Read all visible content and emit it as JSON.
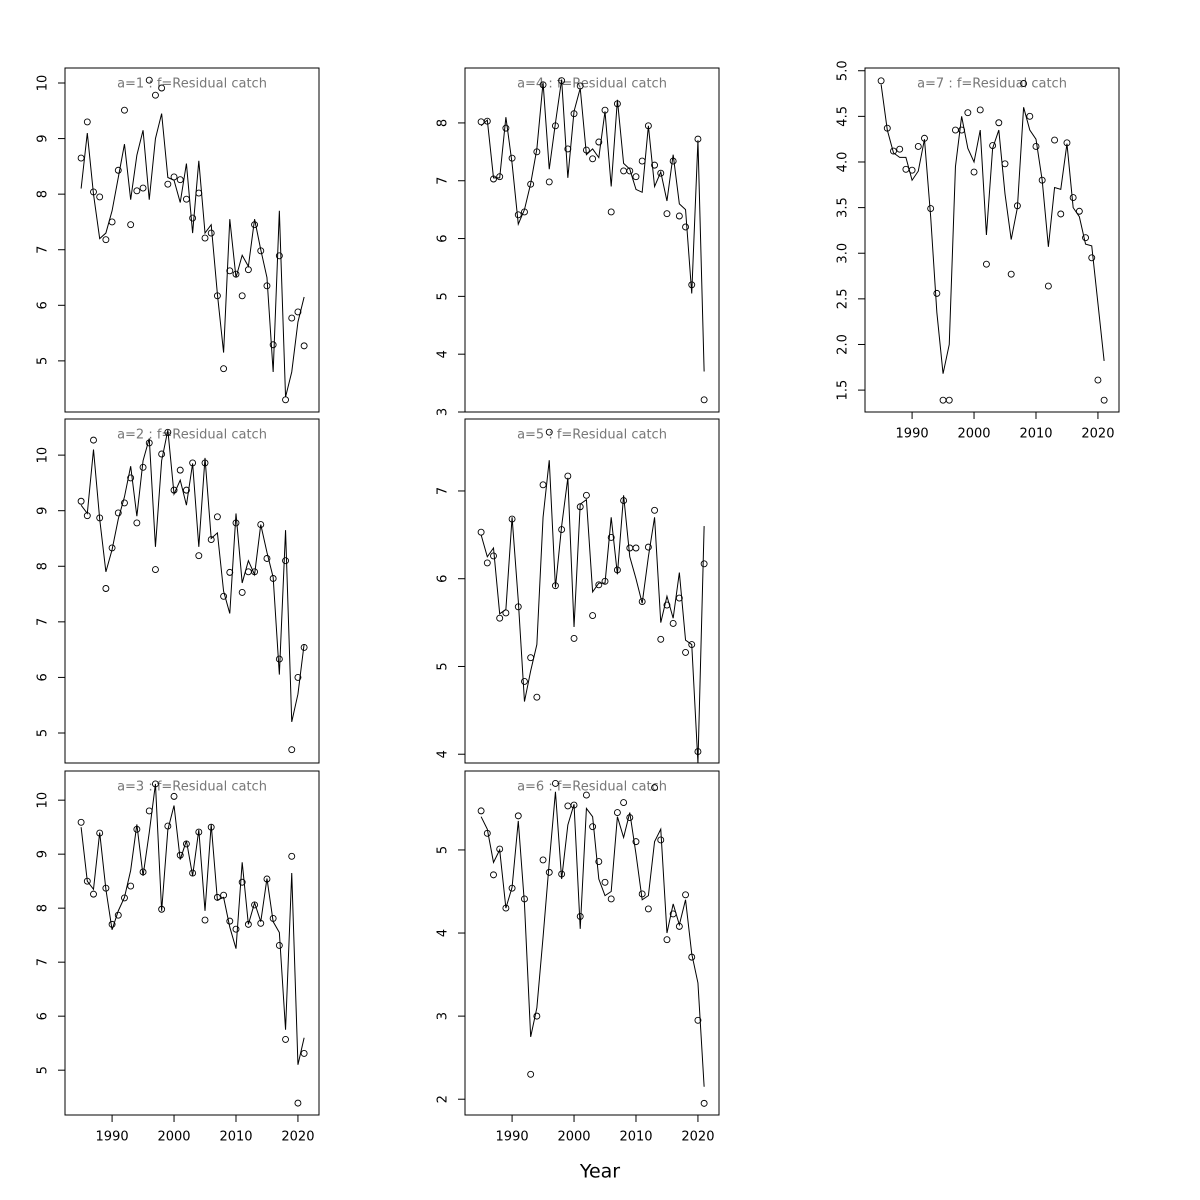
{
  "xlabel": "Year",
  "chart_data": [
    {
      "type": "line",
      "title": "a=1 : f=Residual catch",
      "x": [
        1985,
        1986,
        1987,
        1988,
        1989,
        1990,
        1991,
        1992,
        1993,
        1994,
        1995,
        1996,
        1997,
        1998,
        1999,
        2000,
        2001,
        2002,
        2003,
        2004,
        2005,
        2006,
        2007,
        2008,
        2009,
        2010,
        2011,
        2012,
        2013,
        2014,
        2015,
        2016,
        2017,
        2018,
        2019,
        2020,
        2021
      ],
      "xlim": [
        1982.4,
        2023.4
      ],
      "ylim": [
        4.08,
        10.27
      ],
      "yticks": [
        5,
        6,
        7,
        8,
        9,
        10
      ],
      "series": [
        {
          "style": "points",
          "color": "#000000",
          "values": [
            8.65,
            9.3,
            8.04,
            7.95,
            7.18,
            7.5,
            8.43,
            9.51,
            7.45,
            8.06,
            8.11,
            10.05,
            9.78,
            9.91,
            8.18,
            8.31,
            8.26,
            7.91,
            7.57,
            8.02,
            7.21,
            7.3,
            6.17,
            4.86,
            6.62,
            6.56,
            6.17,
            6.64,
            7.45,
            6.98,
            6.35,
            5.29,
            6.89,
            4.3,
            5.77,
            5.88,
            5.27
          ]
        },
        {
          "style": "line",
          "color": "#000000",
          "values": [
            8.1,
            9.1,
            8.0,
            7.2,
            7.3,
            7.7,
            8.3,
            8.9,
            7.9,
            8.7,
            9.15,
            7.9,
            9.0,
            9.45,
            8.3,
            8.25,
            7.85,
            8.55,
            7.3,
            8.6,
            7.3,
            7.45,
            6.2,
            5.15,
            7.55,
            6.5,
            6.9,
            6.7,
            7.55,
            7.0,
            6.5,
            4.8,
            7.7,
            4.35,
            4.8,
            5.7,
            6.15
          ]
        }
      ]
    },
    {
      "type": "line",
      "title": "a=2 : f=Residual catch",
      "x": [
        1985,
        1986,
        1987,
        1988,
        1989,
        1990,
        1991,
        1992,
        1993,
        1994,
        1995,
        1996,
        1997,
        1998,
        1999,
        2000,
        2001,
        2002,
        2003,
        2004,
        2005,
        2006,
        2007,
        2008,
        2009,
        2010,
        2011,
        2012,
        2013,
        2014,
        2015,
        2016,
        2017,
        2018,
        2019,
        2020,
        2021
      ],
      "xlim": [
        1982.4,
        2023.4
      ],
      "ylim": [
        4.46,
        10.65
      ],
      "yticks": [
        5,
        6,
        7,
        8,
        9,
        10
      ],
      "series": [
        {
          "style": "points",
          "color": "#000000",
          "values": [
            9.17,
            8.91,
            10.27,
            8.87,
            7.6,
            8.33,
            8.96,
            9.14,
            9.59,
            8.78,
            9.78,
            10.22,
            7.94,
            10.02,
            10.41,
            9.37,
            9.73,
            9.37,
            9.86,
            8.19,
            9.86,
            8.48,
            8.89,
            7.46,
            7.89,
            8.78,
            7.53,
            7.9,
            7.9,
            8.75,
            8.14,
            7.78,
            6.33,
            8.1,
            4.7,
            6.0,
            6.54
          ]
        },
        {
          "style": "line",
          "color": "#000000",
          "values": [
            9.1,
            8.95,
            10.1,
            8.85,
            7.9,
            8.3,
            8.85,
            9.25,
            9.8,
            8.9,
            9.9,
            10.3,
            8.35,
            9.9,
            10.45,
            9.3,
            9.55,
            9.1,
            9.85,
            8.35,
            9.95,
            8.5,
            8.6,
            7.55,
            7.15,
            8.95,
            7.7,
            8.1,
            7.85,
            8.75,
            8.25,
            7.8,
            6.05,
            8.65,
            5.2,
            5.7,
            6.6
          ]
        }
      ]
    },
    {
      "type": "line",
      "title": "a=3 : f=Residual catch",
      "x": [
        1985,
        1986,
        1987,
        1988,
        1989,
        1990,
        1991,
        1992,
        1993,
        1994,
        1995,
        1996,
        1997,
        1998,
        1999,
        2000,
        2001,
        2002,
        2003,
        2004,
        2005,
        2006,
        2007,
        2008,
        2009,
        2010,
        2011,
        2012,
        2013,
        2014,
        2015,
        2016,
        2017,
        2018,
        2019,
        2020,
        2021
      ],
      "xlim": [
        1982.4,
        2023.4
      ],
      "xticks": [
        1990,
        2000,
        2010,
        2020
      ],
      "ylim": [
        4.17,
        10.54
      ],
      "yticks": [
        5,
        6,
        7,
        8,
        9,
        10
      ],
      "series": [
        {
          "style": "points",
          "color": "#000000",
          "values": [
            9.59,
            8.5,
            8.26,
            9.39,
            8.37,
            7.7,
            7.87,
            8.19,
            8.41,
            9.46,
            8.67,
            9.8,
            10.3,
            7.98,
            9.52,
            10.07,
            8.98,
            9.19,
            8.65,
            9.41,
            7.78,
            9.5,
            8.2,
            8.24,
            7.76,
            7.61,
            8.48,
            7.7,
            8.06,
            7.72,
            8.54,
            7.81,
            7.31,
            5.57,
            8.96,
            4.39,
            5.31
          ]
        },
        {
          "style": "line",
          "color": "#000000",
          "values": [
            9.5,
            8.5,
            8.35,
            9.4,
            8.35,
            7.6,
            7.95,
            8.2,
            8.7,
            9.55,
            8.6,
            9.4,
            10.3,
            7.95,
            9.45,
            9.9,
            8.9,
            9.25,
            8.6,
            9.45,
            7.95,
            9.55,
            8.15,
            8.2,
            7.65,
            7.25,
            8.85,
            7.7,
            8.1,
            7.75,
            8.55,
            7.75,
            7.55,
            5.75,
            8.65,
            5.1,
            5.6
          ]
        }
      ]
    },
    {
      "type": "line",
      "title": "a=4 : f=Residual catch",
      "x": [
        1985,
        1986,
        1987,
        1988,
        1989,
        1990,
        1991,
        1992,
        1993,
        1994,
        1995,
        1996,
        1997,
        1998,
        1999,
        2000,
        2001,
        2002,
        2003,
        2004,
        2005,
        2006,
        2007,
        2008,
        2009,
        2010,
        2011,
        2012,
        2013,
        2014,
        2015,
        2016,
        2017,
        2018,
        2019,
        2020,
        2021
      ],
      "xlim": [
        1982.4,
        2023.4
      ],
      "ylim": [
        3,
        8.95
      ],
      "yticks": [
        3,
        4,
        5,
        6,
        7,
        8
      ],
      "series": [
        {
          "style": "points",
          "color": "#000000",
          "values": [
            8.02,
            8.03,
            7.03,
            7.07,
            7.91,
            7.39,
            6.41,
            6.46,
            6.94,
            7.5,
            8.66,
            6.98,
            7.95,
            8.73,
            7.55,
            8.16,
            8.64,
            7.53,
            7.38,
            7.67,
            8.22,
            6.46,
            8.33,
            7.17,
            7.17,
            7.07,
            7.34,
            7.95,
            7.27,
            7.13,
            6.43,
            7.34,
            6.39,
            6.2,
            5.2,
            7.72,
            3.21
          ]
        },
        {
          "style": "line",
          "color": "#000000",
          "values": [
            7.95,
            8.05,
            7.05,
            7.05,
            8.1,
            7.3,
            6.25,
            6.5,
            6.95,
            7.55,
            8.7,
            7.2,
            8.0,
            8.75,
            7.05,
            8.2,
            8.6,
            7.45,
            7.55,
            7.4,
            8.2,
            6.9,
            8.4,
            7.3,
            7.2,
            6.85,
            6.8,
            7.95,
            6.9,
            7.15,
            6.65,
            7.45,
            6.6,
            6.5,
            5.05,
            7.7,
            3.7
          ]
        }
      ]
    },
    {
      "type": "line",
      "title": "a=5 : f=Residual catch",
      "x": [
        1985,
        1986,
        1987,
        1988,
        1989,
        1990,
        1991,
        1992,
        1993,
        1994,
        1995,
        1996,
        1997,
        1998,
        1999,
        2000,
        2001,
        2002,
        2003,
        2004,
        2005,
        2006,
        2007,
        2008,
        2009,
        2010,
        2011,
        2012,
        2013,
        2014,
        2015,
        2016,
        2017,
        2018,
        2019,
        2020,
        2021
      ],
      "xlim": [
        1982.4,
        2023.4
      ],
      "ylim": [
        3.9,
        7.82
      ],
      "yticks": [
        4,
        5,
        6,
        7
      ],
      "series": [
        {
          "style": "points",
          "color": "#000000",
          "values": [
            6.53,
            6.18,
            6.26,
            5.55,
            5.61,
            6.68,
            5.68,
            4.83,
            5.1,
            4.65,
            7.07,
            7.67,
            5.92,
            6.56,
            7.17,
            5.32,
            6.82,
            6.95,
            5.58,
            5.93,
            5.97,
            6.47,
            6.1,
            6.89,
            6.35,
            6.35,
            5.74,
            6.36,
            6.78,
            5.31,
            5.7,
            5.49,
            5.78,
            5.16,
            5.25,
            4.03,
            6.17
          ]
        },
        {
          "style": "line",
          "color": "#000000",
          "values": [
            6.5,
            6.25,
            6.35,
            5.6,
            5.65,
            6.7,
            5.75,
            4.6,
            4.95,
            5.25,
            6.7,
            7.35,
            5.9,
            6.6,
            7.15,
            5.45,
            6.85,
            6.9,
            5.85,
            5.95,
            5.95,
            6.7,
            6.05,
            6.95,
            6.25,
            6.0,
            5.72,
            6.25,
            6.7,
            5.5,
            5.8,
            5.55,
            6.07,
            5.3,
            5.25,
            3.9,
            6.6
          ]
        }
      ]
    },
    {
      "type": "line",
      "title": "a=6 : f=Residual catch",
      "x": [
        1985,
        1986,
        1987,
        1988,
        1989,
        1990,
        1991,
        1992,
        1993,
        1994,
        1995,
        1996,
        1997,
        1998,
        1999,
        2000,
        2001,
        2002,
        2003,
        2004,
        2005,
        2006,
        2007,
        2008,
        2009,
        2010,
        2011,
        2012,
        2013,
        2014,
        2015,
        2016,
        2017,
        2018,
        2019,
        2020,
        2021
      ],
      "xlim": [
        1982.4,
        2023.4
      ],
      "xticks": [
        1990,
        2000,
        2010,
        2020
      ],
      "ylim": [
        1.81,
        5.95
      ],
      "yticks": [
        2,
        3,
        4,
        5
      ],
      "series": [
        {
          "style": "points",
          "color": "#000000",
          "values": [
            5.47,
            5.2,
            4.7,
            5.01,
            4.3,
            4.54,
            5.41,
            4.41,
            2.3,
            3.0,
            4.88,
            4.73,
            5.8,
            4.71,
            5.53,
            5.54,
            4.2,
            5.66,
            5.28,
            4.86,
            4.61,
            4.41,
            5.45,
            5.57,
            5.39,
            5.1,
            4.47,
            4.29,
            5.75,
            5.12,
            3.92,
            4.23,
            4.08,
            4.46,
            3.71,
            2.95,
            1.95
          ]
        },
        {
          "style": "line",
          "color": "#000000",
          "values": [
            5.4,
            5.25,
            4.85,
            5.0,
            4.3,
            4.55,
            5.35,
            4.35,
            2.75,
            3.1,
            3.95,
            4.85,
            5.7,
            4.65,
            5.3,
            5.55,
            4.05,
            5.5,
            5.4,
            4.65,
            4.45,
            4.5,
            5.4,
            5.15,
            5.45,
            4.95,
            4.4,
            4.45,
            5.1,
            5.25,
            4.0,
            4.35,
            4.1,
            4.4,
            3.75,
            3.4,
            2.15
          ]
        }
      ]
    },
    {
      "type": "line",
      "title": "a=7 : f=Residual catch",
      "x": [
        1985,
        1986,
        1987,
        1988,
        1989,
        1990,
        1991,
        1992,
        1993,
        1994,
        1995,
        1996,
        1997,
        1998,
        1999,
        2000,
        2001,
        2002,
        2003,
        2004,
        2005,
        2006,
        2007,
        2008,
        2009,
        2010,
        2011,
        2012,
        2013,
        2014,
        2015,
        2016,
        2017,
        2018,
        2019,
        2020,
        2021
      ],
      "xlim": [
        1982.4,
        2023.4
      ],
      "xticks": [
        1990,
        2000,
        2010,
        2020
      ],
      "ylim": [
        1.26,
        5.03
      ],
      "yticks": [
        {
          "value": 1.5,
          "label": "1.5"
        },
        {
          "value": 2,
          "label": "2.0"
        },
        {
          "value": 2.5,
          "label": "2.5"
        },
        {
          "value": 3,
          "label": "3.0"
        },
        {
          "value": 3.5,
          "label": "3.5"
        },
        {
          "value": 4,
          "label": "4.0"
        },
        {
          "value": 4.5,
          "label": "4.5"
        },
        {
          "value": 5,
          "label": "5.0"
        }
      ],
      "series": [
        {
          "style": "points",
          "color": "#000000",
          "values": [
            4.89,
            4.37,
            4.12,
            4.14,
            3.92,
            3.91,
            4.17,
            4.26,
            3.49,
            2.56,
            1.39,
            1.39,
            4.35,
            4.35,
            4.54,
            3.89,
            4.57,
            2.88,
            4.18,
            4.43,
            3.98,
            2.77,
            3.52,
            4.86,
            4.5,
            4.17,
            3.8,
            2.64,
            4.24,
            3.43,
            4.21,
            3.61,
            3.46,
            3.17,
            2.95,
            1.61,
            1.39
          ]
        },
        {
          "style": "line",
          "color": "#000000",
          "values": [
            4.85,
            4.35,
            4.1,
            4.05,
            4.05,
            3.8,
            3.9,
            4.25,
            3.4,
            2.35,
            1.68,
            2.0,
            3.95,
            4.5,
            4.15,
            4.0,
            4.35,
            3.2,
            4.15,
            4.35,
            3.65,
            3.15,
            3.5,
            4.6,
            4.35,
            4.25,
            3.8,
            3.07,
            3.72,
            3.7,
            4.2,
            3.5,
            3.4,
            3.1,
            3.08,
            2.45,
            1.82
          ]
        }
      ]
    }
  ]
}
